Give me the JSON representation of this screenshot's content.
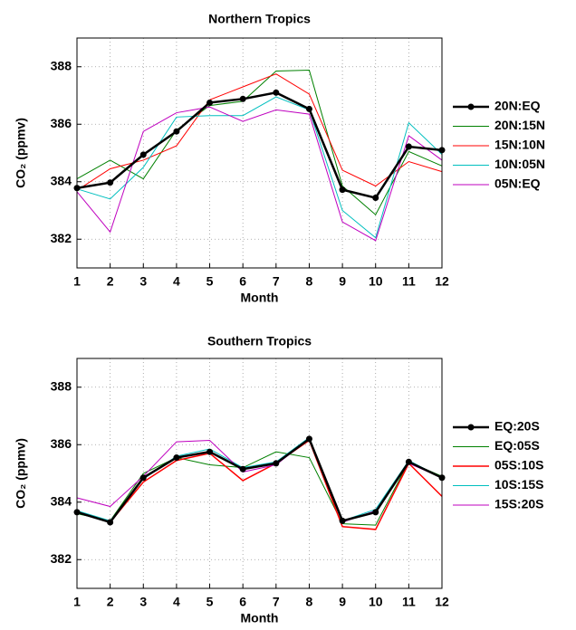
{
  "chart_data": [
    {
      "type": "line",
      "title": "Northern Tropics",
      "xlabel": "Month",
      "ylabel": "CO₂ (ppmv)",
      "x": [
        1,
        2,
        3,
        4,
        5,
        6,
        7,
        8,
        9,
        10,
        11,
        12
      ],
      "xlim": [
        1,
        12
      ],
      "xticks": [
        1,
        2,
        3,
        4,
        5,
        6,
        7,
        8,
        9,
        10,
        11,
        12
      ],
      "ylim": [
        381,
        389
      ],
      "yticks": [
        382,
        384,
        386,
        388
      ],
      "grid": true,
      "legend": "outside-right",
      "series": [
        {
          "name": "20N:EQ",
          "color": "#000000",
          "width": 2.5,
          "markers": true,
          "values": [
            383.78,
            383.97,
            384.94,
            385.75,
            386.75,
            386.88,
            387.1,
            386.53,
            383.72,
            383.44,
            385.22,
            385.1
          ]
        },
        {
          "name": "20N:15N",
          "color": "#008000",
          "width": 1,
          "markers": false,
          "values": [
            384.1,
            384.75,
            384.1,
            385.8,
            386.65,
            386.8,
            387.85,
            387.88,
            383.85,
            382.85,
            385.05,
            384.55
          ]
        },
        {
          "name": "15N:10N",
          "color": "#ff0000",
          "width": 1,
          "markers": false,
          "values": [
            383.7,
            384.45,
            384.75,
            385.25,
            386.85,
            387.3,
            387.75,
            387.05,
            384.4,
            383.85,
            384.7,
            384.35
          ]
        },
        {
          "name": "10N:05N",
          "color": "#00bfbf",
          "width": 1,
          "markers": false,
          "values": [
            383.75,
            383.4,
            384.5,
            386.25,
            386.3,
            386.3,
            386.95,
            386.5,
            383.0,
            382.05,
            386.05,
            384.95
          ]
        },
        {
          "name": "05N:EQ",
          "color": "#bf00bf",
          "width": 1,
          "markers": false,
          "values": [
            383.65,
            382.25,
            385.75,
            386.4,
            386.6,
            386.1,
            386.5,
            386.35,
            382.6,
            381.95,
            385.6,
            384.75
          ]
        }
      ]
    },
    {
      "type": "line",
      "title": "Southern Tropics",
      "xlabel": "Month",
      "ylabel": "CO₂ (ppmv)",
      "x": [
        1,
        2,
        3,
        4,
        5,
        6,
        7,
        8,
        9,
        10,
        11,
        12
      ],
      "xlim": [
        1,
        12
      ],
      "xticks": [
        1,
        2,
        3,
        4,
        5,
        6,
        7,
        8,
        9,
        10,
        11,
        12
      ],
      "ylim": [
        381,
        389
      ],
      "yticks": [
        382,
        384,
        386,
        388
      ],
      "grid": true,
      "legend": "outside-right",
      "series": [
        {
          "name": "EQ:20S",
          "color": "#000000",
          "width": 2.5,
          "markers": true,
          "values": [
            383.65,
            383.3,
            384.85,
            385.55,
            385.75,
            385.15,
            385.35,
            386.2,
            383.35,
            383.65,
            385.4,
            384.85
          ]
        },
        {
          "name": "EQ:05S",
          "color": "#008000",
          "width": 1,
          "markers": false,
          "values": [
            383.6,
            383.35,
            385.0,
            385.55,
            385.3,
            385.2,
            385.75,
            385.55,
            383.25,
            383.2,
            385.4,
            384.9
          ]
        },
        {
          "name": "05S:10S",
          "color": "#ff0000",
          "width": 1.5,
          "markers": false,
          "values": [
            383.65,
            383.3,
            384.7,
            385.45,
            385.7,
            384.75,
            385.35,
            386.15,
            383.15,
            383.05,
            385.35,
            384.2
          ]
        },
        {
          "name": "10S:15S",
          "color": "#00bfbf",
          "width": 1,
          "markers": false,
          "values": [
            383.7,
            383.35,
            384.8,
            385.6,
            385.85,
            385.2,
            385.4,
            386.25,
            383.35,
            383.75,
            385.45,
            384.85
          ]
        },
        {
          "name": "15S:20S",
          "color": "#bf00bf",
          "width": 1,
          "markers": false,
          "values": [
            384.15,
            383.85,
            384.9,
            386.1,
            386.15,
            385.05,
            385.3,
            386.2,
            383.3,
            383.7,
            385.35,
            384.85
          ]
        }
      ]
    }
  ]
}
